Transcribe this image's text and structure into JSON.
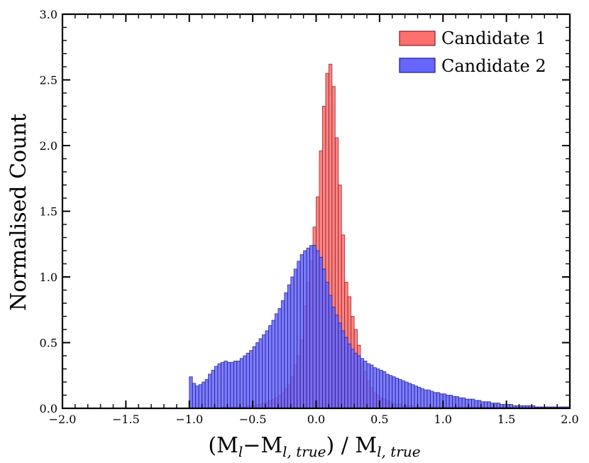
{
  "chart_data": {
    "type": "bar",
    "chart_subtype": "overlaid-histogram",
    "xlabel": "(M_l − M_l,true) / M_l,true",
    "xlabel_parts": {
      "open": "(M",
      "sub1": "l",
      "minus": "−M",
      "sub2": "l, true",
      "close": ") / M",
      "sub3": "l, true"
    },
    "ylabel": "Normalised Count",
    "xlim": [
      -2.0,
      2.0
    ],
    "ylim": [
      0.0,
      3.0
    ],
    "xticks": [
      "−2.0",
      "−1.5",
      "−1.0",
      "−0.5",
      "0.0",
      "0.5",
      "1.0",
      "1.5",
      "2.0"
    ],
    "yticks": [
      "0.0",
      "0.5",
      "1.0",
      "1.5",
      "2.0",
      "2.5",
      "3.0"
    ],
    "legend_position": "top-right",
    "bin_start": -1.0,
    "bin_width": 0.025,
    "series": [
      {
        "name": "Candidate 1",
        "color": "#ff6f6f",
        "edge_color": "#8b1a1a",
        "values": [
          0,
          0,
          0,
          0,
          0,
          0,
          0,
          0,
          0,
          0,
          0.01,
          0.01,
          0.01,
          0.01,
          0.01,
          0.01,
          0.01,
          0.01,
          0.02,
          0.02,
          0.02,
          0.03,
          0.03,
          0.04,
          0.05,
          0.06,
          0.07,
          0.08,
          0.1,
          0.12,
          0.15,
          0.18,
          0.24,
          0.33,
          0.4,
          0.52,
          0.78,
          0.96,
          1.12,
          1.38,
          1.61,
          1.96,
          2.3,
          2.55,
          2.62,
          2.45,
          2.06,
          1.7,
          1.32,
          0.96,
          0.85,
          0.7,
          0.6,
          0.48,
          0.35,
          0.28,
          0.21,
          0.16,
          0.12,
          0.1,
          0.08,
          0.07,
          0.06,
          0.05,
          0.04,
          0.03,
          0.03,
          0.02,
          0.02,
          0.02,
          0.02,
          0.01,
          0.01,
          0.01,
          0.01,
          0.01,
          0.01,
          0.01,
          0.01,
          0.01,
          0.01,
          0.01,
          0.01,
          0.01,
          0.01,
          0.01,
          0.01,
          0.01,
          0.01,
          0.01,
          0.01,
          0.01,
          0.01,
          0.01,
          0.01,
          0.01,
          0.01,
          0.01,
          0.01,
          0.01,
          0.01,
          0.01,
          0.01,
          0.01,
          0.01,
          0.01,
          0.01,
          0.01,
          0.01,
          0.01,
          0.01,
          0.01,
          0.01,
          0.01,
          0.01,
          0.01,
          0.01,
          0.01,
          0.01,
          0.01
        ]
      },
      {
        "name": "Candidate 2",
        "color": "#6666ff",
        "edge_color": "#1a1a8b",
        "values": [
          0.24,
          0.19,
          0.17,
          0.18,
          0.2,
          0.22,
          0.26,
          0.29,
          0.32,
          0.34,
          0.35,
          0.36,
          0.35,
          0.35,
          0.36,
          0.36,
          0.38,
          0.4,
          0.42,
          0.44,
          0.47,
          0.5,
          0.53,
          0.56,
          0.59,
          0.63,
          0.67,
          0.72,
          0.76,
          0.82,
          0.88,
          0.94,
          1.0,
          1.06,
          1.12,
          1.17,
          1.2,
          1.22,
          1.24,
          1.24,
          1.2,
          1.15,
          1.06,
          0.96,
          0.86,
          0.77,
          0.71,
          0.65,
          0.59,
          0.54,
          0.49,
          0.45,
          0.42,
          0.4,
          0.38,
          0.36,
          0.34,
          0.33,
          0.31,
          0.3,
          0.29,
          0.28,
          0.26,
          0.25,
          0.24,
          0.23,
          0.22,
          0.21,
          0.2,
          0.19,
          0.18,
          0.17,
          0.16,
          0.15,
          0.14,
          0.14,
          0.13,
          0.12,
          0.12,
          0.11,
          0.11,
          0.1,
          0.1,
          0.09,
          0.09,
          0.08,
          0.08,
          0.07,
          0.07,
          0.07,
          0.06,
          0.06,
          0.05,
          0.05,
          0.05,
          0.04,
          0.04,
          0.04,
          0.03,
          0.03,
          0.03,
          0.03,
          0.02,
          0.02,
          0.02,
          0.02,
          0.02,
          0.02,
          0.02,
          0.01,
          0.01,
          0.01,
          0.01,
          0.01,
          0.01,
          0.01,
          0.01,
          0.01,
          0.01,
          0.01
        ]
      }
    ]
  }
}
